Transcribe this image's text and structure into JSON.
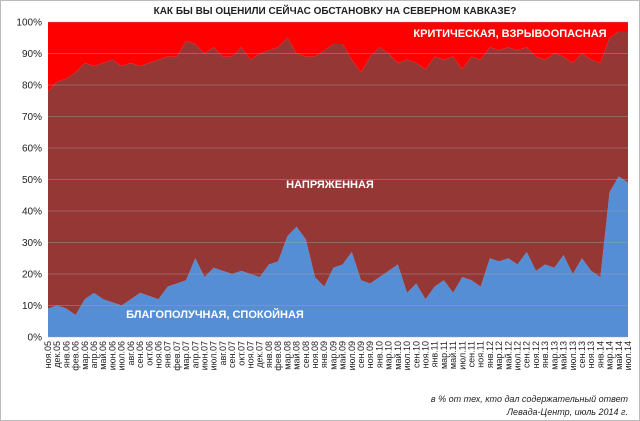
{
  "chart_data": {
    "type": "stacked_area",
    "title": "КАК БЫ ВЫ ОЦЕНИЛИ СЕЙЧАС ОБСТАНОВКУ НА СЕВЕРНОМ КАВКАЗЕ?",
    "notes": [
      "в % от тех, кто дал содержательный ответ",
      "Левада-Центр, июль 2014 г."
    ],
    "categories": [
      "ноя.05",
      "дек.05",
      "янв.06",
      "фев.06",
      "мар.06",
      "апр.06",
      "май.06",
      "июн.06",
      "июл.06",
      "авг.06",
      "сен.06",
      "окт.06",
      "ноя.06",
      "янв.07",
      "фев.07",
      "мар.07",
      "апр.07",
      "июн.07",
      "июл.07",
      "авг.07",
      "сен.07",
      "окт.07",
      "ноя.07",
      "дек.07",
      "янв.08",
      "фев.08",
      "мар.08",
      "май.08",
      "сен.08",
      "ноя.08",
      "янв.09",
      "мар.09",
      "май.09",
      "июл.09",
      "сен.09",
      "ноя.09",
      "янв.10",
      "мар.10",
      "май.10",
      "июл.10",
      "сен.10",
      "ноя.10",
      "янв.11",
      "мар.11",
      "май.11",
      "июл.11",
      "сен.11",
      "ноя.11",
      "янв.12",
      "мар.12",
      "май.12",
      "июл.12",
      "сен.12",
      "ноя.12",
      "янв.13",
      "мар.13",
      "май.13",
      "июл.13",
      "сен.13",
      "ноя.13",
      "янв.14",
      "мар.14",
      "май.14",
      "июл.14"
    ],
    "series": [
      {
        "name": "БЛАГОПОЛУЧНАЯ, СПОКОЙНАЯ",
        "color": "#558ed5",
        "values": [
          9,
          10,
          9,
          7,
          12,
          14,
          12,
          11,
          10,
          12,
          14,
          13,
          12,
          16,
          17,
          18,
          25,
          19,
          22,
          21,
          20,
          21,
          20,
          19,
          23,
          24,
          32,
          35,
          31,
          19,
          16,
          22,
          23,
          27,
          18,
          17,
          19,
          21,
          23,
          14,
          17,
          12,
          16,
          18,
          14,
          19,
          18,
          16,
          25,
          24,
          25,
          23,
          27,
          21,
          23,
          22,
          26,
          20,
          25,
          21,
          19,
          46,
          51,
          49
        ]
      },
      {
        "name": "НАПРЯЖЕННАЯ",
        "color": "#953735",
        "values": [
          69,
          71,
          73,
          77,
          75,
          72,
          75,
          77,
          76,
          75,
          72,
          74,
          76,
          73,
          72,
          76,
          68,
          71,
          70,
          68,
          69,
          71,
          68,
          71,
          68,
          68,
          63,
          55,
          58,
          70,
          75,
          71,
          70,
          61,
          66,
          72,
          73,
          69,
          64,
          74,
          70,
          73,
          73,
          70,
          75,
          66,
          71,
          72,
          67,
          67,
          67,
          68,
          65,
          68,
          65,
          68,
          63,
          67,
          65,
          67,
          68,
          49,
          46,
          48
        ]
      },
      {
        "name": "КРИТИЧЕСКАЯ, ВЗРЫВООПАСНАЯ",
        "color": "#ff0000",
        "values": [
          22,
          19,
          18,
          16,
          13,
          14,
          13,
          12,
          14,
          13,
          14,
          13,
          12,
          11,
          11,
          6,
          7,
          10,
          8,
          11,
          11,
          8,
          12,
          10,
          9,
          8,
          5,
          10,
          11,
          11,
          9,
          7,
          7,
          12,
          16,
          11,
          8,
          10,
          13,
          12,
          13,
          15,
          11,
          12,
          11,
          15,
          11,
          12,
          8,
          9,
          8,
          9,
          8,
          11,
          12,
          10,
          11,
          13,
          10,
          12,
          13,
          5,
          3,
          3
        ]
      }
    ],
    "ylim": [
      0,
      100
    ],
    "yticks": [
      {
        "value": 0,
        "label": "0%"
      },
      {
        "value": 10,
        "label": "10%"
      },
      {
        "value": 20,
        "label": "20%"
      },
      {
        "value": 30,
        "label": "30%"
      },
      {
        "value": 40,
        "label": "40%"
      },
      {
        "value": 50,
        "label": "50%"
      },
      {
        "value": 60,
        "label": "60%"
      },
      {
        "value": 70,
        "label": "70%"
      },
      {
        "value": 80,
        "label": "80%"
      },
      {
        "value": 90,
        "label": "90%"
      },
      {
        "value": 100,
        "label": "100%"
      }
    ],
    "grid": true
  }
}
